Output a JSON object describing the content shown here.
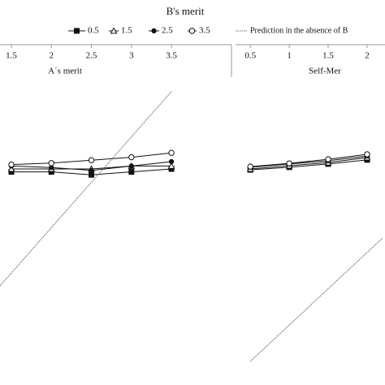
{
  "chart_data": [
    {
      "type": "line",
      "legend_title": "B's merit",
      "x_label": "A´s merit",
      "xlim": [
        1.358,
        4.25
      ],
      "xticks": [
        1.5,
        2,
        2.5,
        3,
        3.5
      ],
      "ylim": [
        0,
        10
      ],
      "series": [
        {
          "name": "0.5",
          "color": "#111",
          "marker": "square-filled",
          "x": [
            1.5,
            2,
            2.5,
            3,
            3.5
          ],
          "values": [
            6.9,
            6.9,
            6.8,
            6.9,
            7.0
          ]
        },
        {
          "name": "1.5",
          "color": "#111",
          "marker": "triangle-open",
          "x": [
            1.5,
            2,
            2.5,
            3,
            3.5
          ],
          "values": [
            7.0,
            7.0,
            7.0,
            7.1,
            7.1
          ]
        },
        {
          "name": "2.5",
          "color": "#111",
          "marker": "circle-filled",
          "x": [
            1.5,
            2,
            2.5,
            3,
            3.5
          ],
          "values": [
            7.1,
            7.05,
            6.95,
            7.1,
            7.25
          ]
        },
        {
          "name": "3.5",
          "color": "#111",
          "marker": "circle-open",
          "x": [
            1.5,
            2,
            2.5,
            3,
            3.5
          ],
          "values": [
            7.15,
            7.2,
            7.3,
            7.4,
            7.55
          ]
        },
        {
          "name": "Prediction in the absence of B",
          "color": "#444",
          "line": "dotted",
          "x": [
            1.358,
            3.5
          ],
          "values": [
            3.0,
            9.65
          ]
        }
      ]
    },
    {
      "type": "line",
      "x_label": "Self-Mer",
      "xlim": [
        0.31,
        2.23
      ],
      "xticks": [
        0.5,
        1,
        1.5,
        2
      ],
      "ylim": [
        0,
        10
      ],
      "series": [
        {
          "name": "0.5",
          "color": "#111",
          "marker": "square-filled",
          "x": [
            0.5,
            1,
            1.5,
            2
          ],
          "values": [
            6.97,
            7.06,
            7.17,
            7.31
          ]
        },
        {
          "name": "1.5",
          "color": "#111",
          "marker": "triangle-open",
          "x": [
            0.5,
            1,
            1.5,
            2
          ],
          "values": [
            7.0,
            7.11,
            7.22,
            7.39
          ]
        },
        {
          "name": "2.5",
          "color": "#111",
          "marker": "circle-filled",
          "x": [
            0.5,
            1,
            1.5,
            2
          ],
          "values": [
            7.06,
            7.17,
            7.28,
            7.44
          ]
        },
        {
          "name": "3.5",
          "color": "#111",
          "marker": "circle-open",
          "x": [
            0.5,
            1,
            1.5,
            2
          ],
          "values": [
            7.08,
            7.19,
            7.33,
            7.5
          ]
        },
        {
          "name": "Prediction in the absence of B",
          "color": "#444",
          "line": "dotted",
          "x": [
            0.5,
            2.2
          ],
          "values": [
            0.42,
            4.64
          ]
        }
      ]
    }
  ]
}
